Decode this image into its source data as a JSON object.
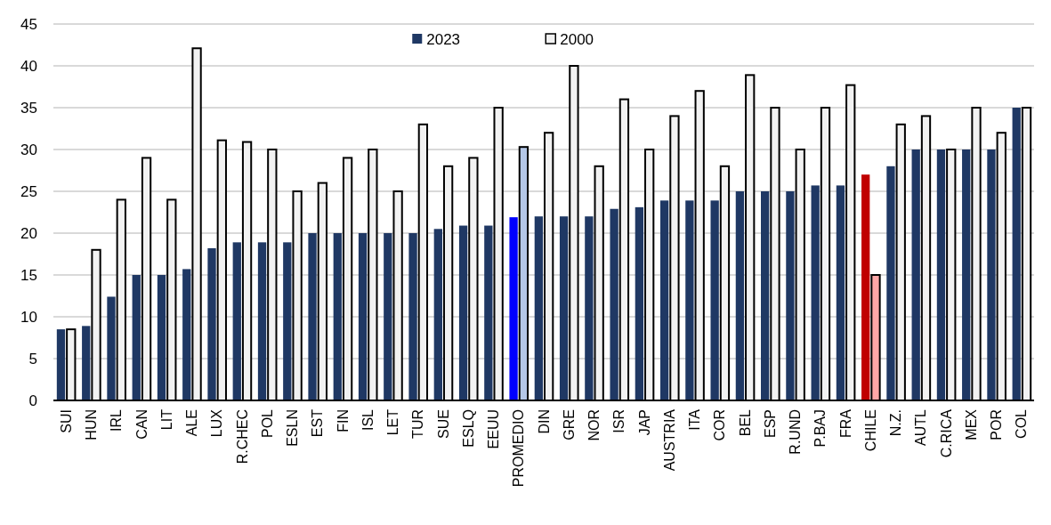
{
  "chart_data": {
    "type": "bar",
    "categories": [
      "SUI",
      "HUN",
      "IRL",
      "CAN",
      "LIT",
      "ALE",
      "LUX",
      "R.CHEC",
      "POL",
      "ESLN",
      "EST",
      "FIN",
      "ISL",
      "LET",
      "TUR",
      "SUE",
      "ESLQ",
      "EEUU",
      "PROMEDIO",
      "DIN",
      "GRE",
      "NOR",
      "ISR",
      "JAP",
      "AUSTRIA",
      "ITA",
      "COR",
      "BEL",
      "ESP",
      "R.UND",
      "P.BAJ",
      "FRA",
      "CHILE",
      "N.Z.",
      "AUTL",
      "C.RICA",
      "MEX",
      "POR",
      "COL"
    ],
    "series": [
      {
        "name": "2023",
        "color": "#1f3864",
        "colors": [
          "#1f3864",
          "#1f3864",
          "#1f3864",
          "#1f3864",
          "#1f3864",
          "#1f3864",
          "#1f3864",
          "#1f3864",
          "#1f3864",
          "#1f3864",
          "#1f3864",
          "#1f3864",
          "#1f3864",
          "#1f3864",
          "#1f3864",
          "#1f3864",
          "#1f3864",
          "#1f3864",
          "#0000ff",
          "#1f3864",
          "#1f3864",
          "#1f3864",
          "#1f3864",
          "#1f3864",
          "#1f3864",
          "#1f3864",
          "#1f3864",
          "#1f3864",
          "#1f3864",
          "#1f3864",
          "#1f3864",
          "#1f3864",
          "#c00000",
          "#1f3864",
          "#1f3864",
          "#1f3864",
          "#1f3864",
          "#1f3864",
          "#1f3864"
        ],
        "values": [
          8.5,
          8.9,
          12.4,
          15,
          15,
          15.7,
          18.2,
          18.9,
          18.9,
          18.9,
          20,
          20,
          20,
          20,
          20,
          20.5,
          20.9,
          20.9,
          21.9,
          22,
          22,
          22,
          22.9,
          23.1,
          23.9,
          23.9,
          23.9,
          25,
          25,
          25,
          25.7,
          25.7,
          27,
          28,
          30,
          30,
          30,
          30,
          35
        ]
      },
      {
        "name": "2000",
        "color": "#f2f2f2",
        "colors": [
          "#f2f2f2",
          "#f2f2f2",
          "#f2f2f2",
          "#f2f2f2",
          "#f2f2f2",
          "#f2f2f2",
          "#f2f2f2",
          "#f2f2f2",
          "#f2f2f2",
          "#f2f2f2",
          "#f2f2f2",
          "#f2f2f2",
          "#f2f2f2",
          "#f2f2f2",
          "#f2f2f2",
          "#f2f2f2",
          "#f2f2f2",
          "#f2f2f2",
          "#b4c7e7",
          "#f2f2f2",
          "#f2f2f2",
          "#f2f2f2",
          "#f2f2f2",
          "#f2f2f2",
          "#f2f2f2",
          "#f2f2f2",
          "#f2f2f2",
          "#f2f2f2",
          "#f2f2f2",
          "#f2f2f2",
          "#f2f2f2",
          "#f2f2f2",
          "#ffa7a7",
          "#f2f2f2",
          "#f2f2f2",
          "#f2f2f2",
          "#f2f2f2",
          "#f2f2f2",
          "#f2f2f2"
        ],
        "values": [
          8.5,
          18,
          24,
          29,
          24,
          42.1,
          31.1,
          30.9,
          30,
          25,
          26,
          29,
          30,
          25,
          33,
          28,
          29,
          35,
          30.3,
          32,
          40,
          28,
          36,
          30,
          34,
          37,
          28,
          38.9,
          35,
          30,
          35,
          37.7,
          15,
          33,
          34,
          30,
          35,
          32,
          35
        ]
      }
    ],
    "ylim": [
      0,
      45
    ],
    "yticks": [
      0,
      5,
      10,
      15,
      20,
      25,
      30,
      35,
      40,
      45
    ],
    "grid": "y",
    "legend": "top"
  }
}
